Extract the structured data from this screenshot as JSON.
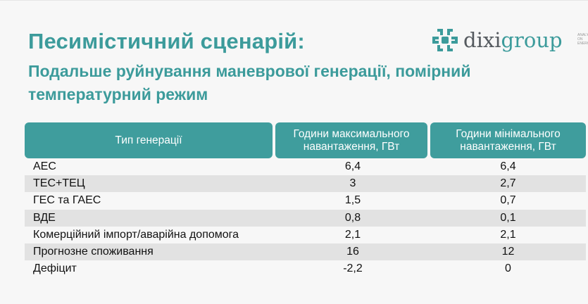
{
  "title": "Песимістичний сценарій:",
  "subtitle": "Подальше руйнування маневрової генерації, помірний температурний режим",
  "logo": {
    "part1": "dixi",
    "part2": "group",
    "tagline": "ANALYTICS ON ENERGY",
    "icon": "dixigroup-logo-icon",
    "color": "#3c9b9b"
  },
  "table": {
    "headers": [
      "Тип генерації",
      "Години максимального навантаження, ГВт",
      "Години мінімального навантаження, ГВт"
    ],
    "rows": [
      {
        "type": "АЕС",
        "max": "6,4",
        "min": "6,4"
      },
      {
        "type": "ТЕС+ТЕЦ",
        "max": "3",
        "min": "2,7"
      },
      {
        "type": "ГЕС та ГАЕС",
        "max": "1,5",
        "min": "0,7"
      },
      {
        "type": "ВДЕ",
        "max": "0,8",
        "min": "0,1"
      },
      {
        "type": "Комерційний імпорт/аварійна допомога",
        "max": "2,1",
        "min": "2,1"
      },
      {
        "type": "Прогнозне споживання",
        "max": "16",
        "min": "12"
      },
      {
        "type": "Дефіцит",
        "max": "-2,2",
        "min": "0"
      }
    ]
  }
}
